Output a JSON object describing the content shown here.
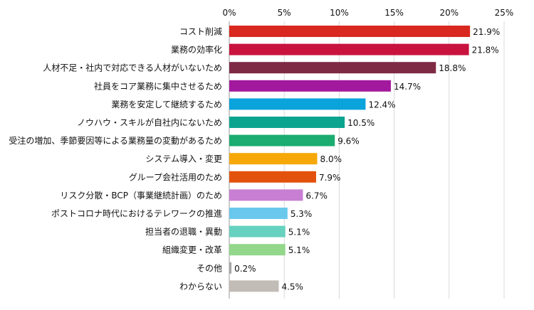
{
  "chart_data": {
    "type": "bar",
    "orientation": "horizontal",
    "title": "",
    "xlabel": "",
    "ylabel": "",
    "xlim": [
      0,
      25
    ],
    "x_ticks": [
      "0%",
      "5%",
      "10%",
      "15%",
      "20%",
      "25%"
    ],
    "x_tick_values": [
      0,
      5,
      10,
      15,
      20,
      25
    ],
    "grid": true,
    "legend": "none",
    "categories": [
      "コスト削減",
      "業務の効率化",
      "人材不足・社内で対応できる人材がいないため",
      "社員をコア業務に集中させるため",
      "業務を安定して継続するため",
      "ノウハウ・スキルが自社内にないため",
      "受注の増加、季節要因等による業務量の変動があるため",
      "システム導入・変更",
      "グループ会社活用のため",
      "リスク分散・BCP（事業継続計画）のため",
      "ポストコロナ時代におけるテレワークの推進",
      "担当者の退職・異動",
      "組織変更・改革",
      "その他",
      "わからない"
    ],
    "values": [
      21.9,
      21.8,
      18.8,
      14.7,
      12.4,
      10.5,
      9.6,
      8.0,
      7.9,
      6.7,
      5.3,
      5.1,
      5.1,
      0.2,
      4.5
    ],
    "value_labels": [
      "21.9%",
      "21.8%",
      "18.8%",
      "14.7%",
      "12.4%",
      "10.5%",
      "9.6%",
      "8.0%",
      "7.9%",
      "6.7%",
      "5.3%",
      "5.1%",
      "5.1%",
      "0.2%",
      "4.5%"
    ],
    "colors": [
      "#d9281f",
      "#c8133f",
      "#7e2a45",
      "#a3199e",
      "#0aa3dc",
      "#0ba48f",
      "#1aac71",
      "#f5a807",
      "#e3520c",
      "#c87fd3",
      "#69c8ec",
      "#66d1be",
      "#92d78a",
      "#a7a6a6",
      "#c2bcb6"
    ]
  }
}
